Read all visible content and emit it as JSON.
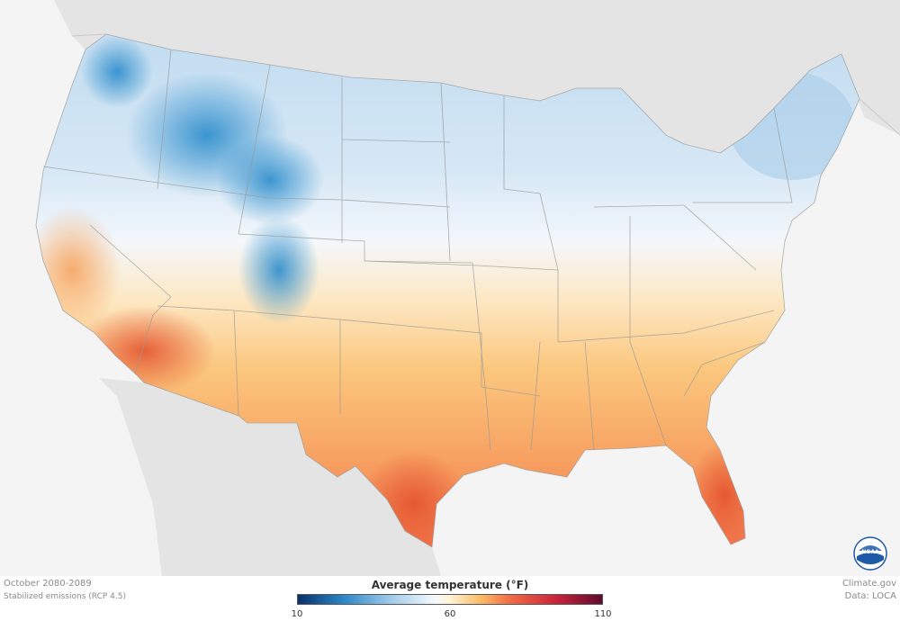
{
  "map": {
    "title": "Average temperature (°F)",
    "period": "October 2080-2089",
    "scenario": "Stabilized emissions (RCP 4.5)",
    "credit_site": "Climate.gov",
    "credit_data": "Data: LOCA",
    "legend": {
      "min_label": "10",
      "mid_label": "60",
      "max_label": "110",
      "stops": [
        {
          "value": 10,
          "color": "#08306b"
        },
        {
          "value": 25,
          "color": "#2c86c6"
        },
        {
          "value": 40,
          "color": "#9cc9ea"
        },
        {
          "value": 55,
          "color": "#f6f9fc"
        },
        {
          "value": 60,
          "color": "#fff3d4"
        },
        {
          "value": 70,
          "color": "#fbbc66"
        },
        {
          "value": 80,
          "color": "#f26a45"
        },
        {
          "value": 95,
          "color": "#c8243a"
        },
        {
          "value": 110,
          "color": "#5e0b2e"
        }
      ]
    },
    "colors": {
      "land_outside": "#e4e4e4",
      "water": "#f4f4f4",
      "cold": "#3a96d4",
      "cool": "#bcd9ef",
      "neutral": "#f3f7fb",
      "warm": "#fbc77e",
      "hot": "#f27a4c",
      "noaa": "#1d5aa8"
    },
    "logo": "noaa-logo"
  }
}
